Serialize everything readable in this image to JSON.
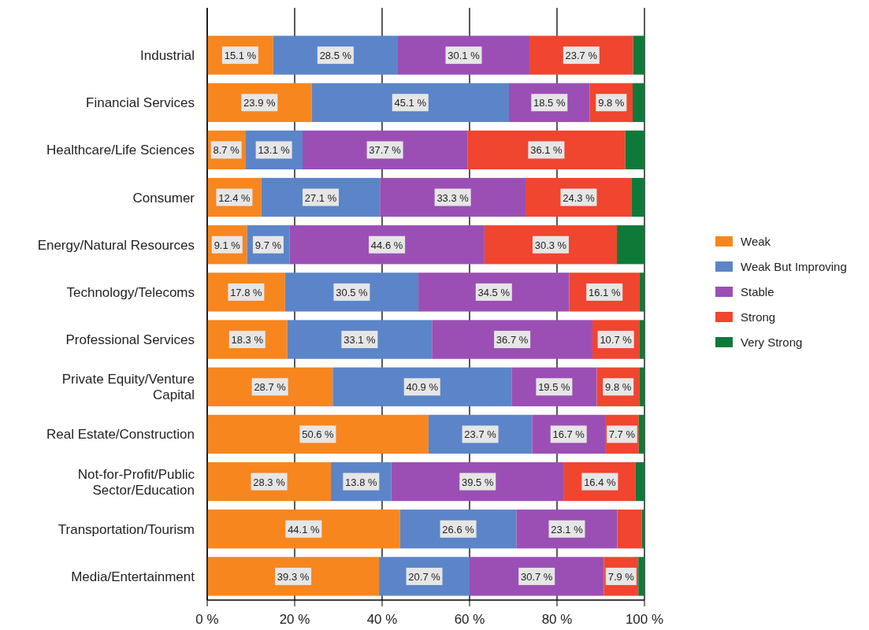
{
  "chart_data": {
    "type": "bar",
    "orientation": "horizontal",
    "stacked": true,
    "categories": [
      "Industrial",
      "Financial Services",
      "Healthcare/Life Sciences",
      "Consumer",
      "Energy/Natural Resources",
      "Technology/Telecoms",
      "Professional Services",
      "Private Equity/Venture Capital",
      "Real Estate/Construction",
      "Not-for-Profit/Public Sector/Education",
      "Transportation/Tourism",
      "Media/Entertainment"
    ],
    "series": [
      {
        "name": "Weak",
        "color": "#f7861e",
        "values": [
          15.1,
          23.9,
          8.7,
          12.4,
          9.1,
          17.8,
          18.3,
          28.7,
          50.6,
          28.3,
          44.1,
          39.3
        ],
        "value_labels": [
          "15.1 %",
          "23.9 %",
          "8.7 %",
          "12.4 %",
          "9.1 %",
          "17.8 %",
          "18.3 %",
          "28.7 %",
          "50.6 %",
          "28.3 %",
          "44.1 %",
          "39.3 %"
        ]
      },
      {
        "name": "Weak But Improving",
        "color": "#5b85c8",
        "values": [
          28.5,
          45.1,
          13.1,
          27.1,
          9.7,
          30.5,
          33.1,
          40.9,
          23.7,
          13.8,
          26.6,
          20.7
        ],
        "value_labels": [
          "28.5 %",
          "45.1 %",
          "13.1 %",
          "27.1 %",
          "9.7 %",
          "30.5 %",
          "33.1 %",
          "40.9 %",
          "23.7 %",
          "13.8 %",
          "26.6 %",
          "20.7 %"
        ]
      },
      {
        "name": "Stable",
        "color": "#9b4fb5",
        "values": [
          30.1,
          18.5,
          37.7,
          33.3,
          44.6,
          34.5,
          36.7,
          19.5,
          16.7,
          39.5,
          23.1,
          30.7
        ],
        "value_labels": [
          "30.1 %",
          "18.5 %",
          "37.7 %",
          "33.3 %",
          "44.6 %",
          "34.5 %",
          "36.7 %",
          "19.5 %",
          "16.7 %",
          "39.5 %",
          "23.1 %",
          "30.7 %"
        ]
      },
      {
        "name": "Strong",
        "color": "#f0452f",
        "values": [
          23.7,
          9.8,
          36.1,
          24.3,
          30.3,
          16.1,
          10.7,
          9.8,
          7.7,
          16.4,
          5.6,
          7.9
        ],
        "value_labels": [
          "23.7 %",
          "9.8 %",
          "36.1 %",
          "24.3 %",
          "30.3 %",
          "16.1 %",
          "10.7 %",
          "9.8 %",
          "7.7 %",
          "16.4 %",
          null,
          "7.9 %"
        ]
      },
      {
        "name": "Very Strong",
        "color": "#0e7a3a",
        "values": [
          2.6,
          2.7,
          4.4,
          2.9,
          6.3,
          1.1,
          1.2,
          1.1,
          1.3,
          2.0,
          0.6,
          1.4
        ]
      }
    ],
    "xlim": [
      0,
      100
    ],
    "xticks": [
      {
        "value": 0,
        "label": "0 %"
      },
      {
        "value": 20,
        "label": "20 %"
      },
      {
        "value": 40,
        "label": "40 %"
      },
      {
        "value": 60,
        "label": "60 %"
      },
      {
        "value": 80,
        "label": "80 %"
      },
      {
        "value": 100,
        "label": "100 %"
      }
    ],
    "grid": "x",
    "legend": "right"
  }
}
